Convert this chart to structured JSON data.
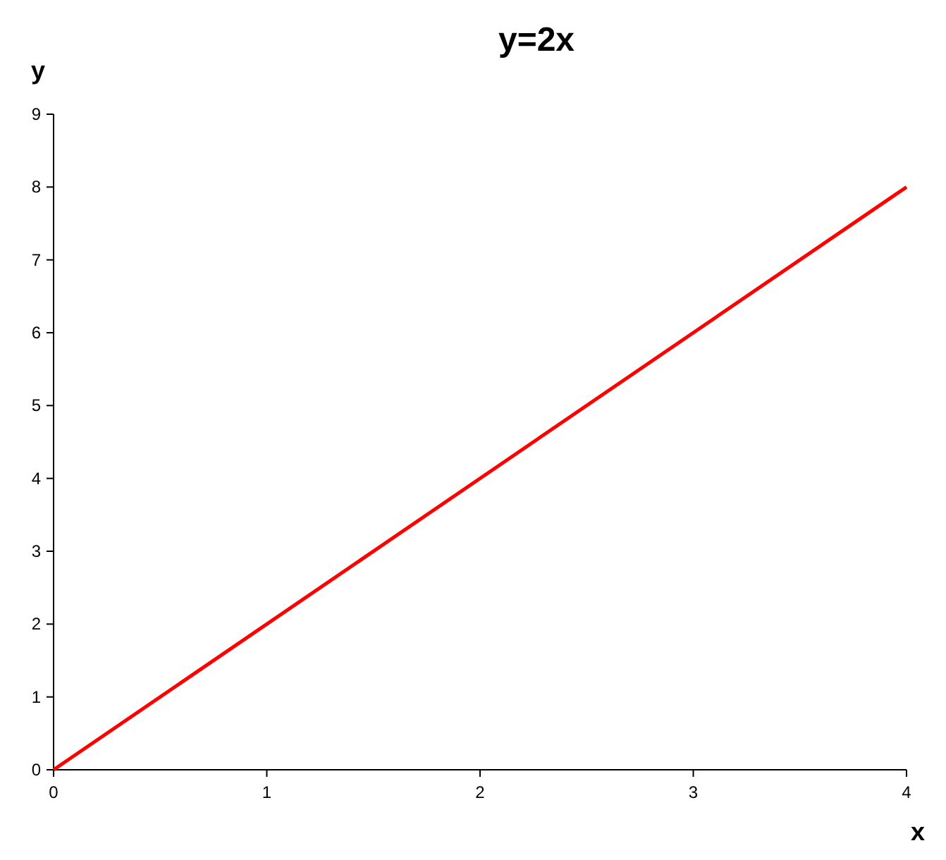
{
  "chart_data": {
    "type": "line",
    "title": "y=2x",
    "xlabel": "x",
    "ylabel": "y",
    "x": [
      0,
      4
    ],
    "series": [
      {
        "color": "#ff0000",
        "values": [
          0,
          8
        ]
      }
    ],
    "xlim": [
      0,
      4
    ],
    "xticks": [
      0,
      1,
      2,
      3,
      4
    ],
    "ylim": [
      0,
      9
    ],
    "yticks": [
      0,
      1,
      2,
      3,
      4,
      5,
      6,
      7,
      8,
      9
    ],
    "grid": false,
    "marker": "none",
    "line_style": "solid"
  }
}
